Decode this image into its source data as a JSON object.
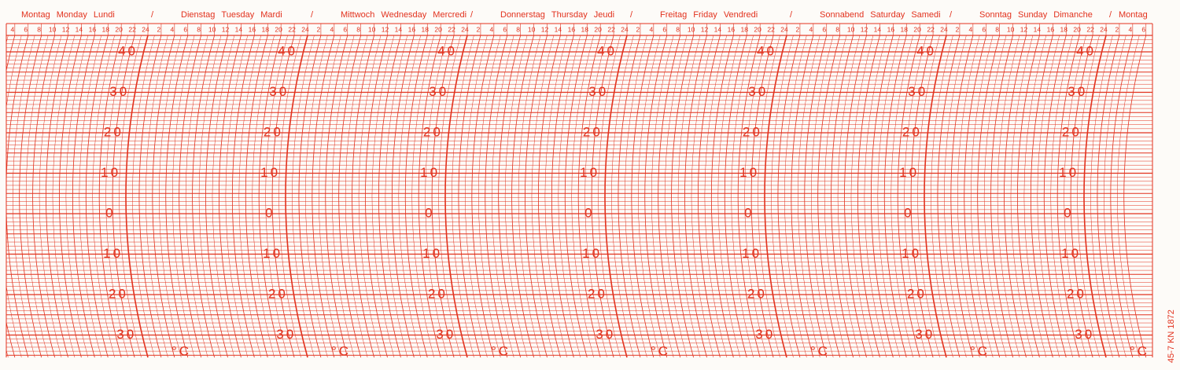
{
  "days": [
    {
      "de": "Montag",
      "en": "Monday",
      "fr": "Lundi"
    },
    {
      "de": "Dienstag",
      "en": "Tuesday",
      "fr": "Mardi"
    },
    {
      "de": "Mittwoch",
      "en": "Wednesday",
      "fr": "Mercredi"
    },
    {
      "de": "Donnerstag",
      "en": "Thursday",
      "fr": "Jeudi"
    },
    {
      "de": "Freitag",
      "en": "Friday",
      "fr": "Vendredi"
    },
    {
      "de": "Sonnabend",
      "en": "Saturday",
      "fr": "Samedi"
    },
    {
      "de": "Sonntag",
      "en": "Sunday",
      "fr": "Dimanche"
    }
  ],
  "next_day": "Montag",
  "separator": "/",
  "hours": [
    2,
    4,
    6,
    8,
    10,
    12,
    14,
    16,
    18,
    20,
    22,
    24
  ],
  "temperature_labels": [
    40,
    30,
    20,
    10,
    0,
    10,
    20,
    30
  ],
  "unit": "°C",
  "side_note": "45-7  KN 1872"
}
